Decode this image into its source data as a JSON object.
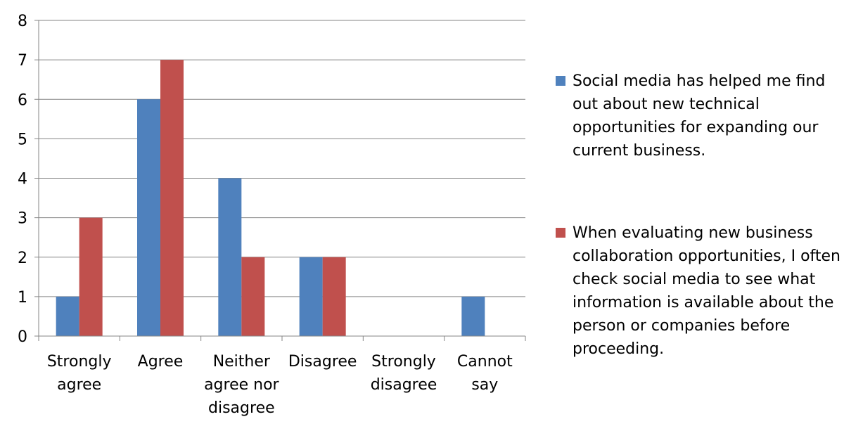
{
  "chart_data": {
    "type": "bar",
    "categories": [
      [
        "Strongly",
        "agree"
      ],
      [
        "Agree"
      ],
      [
        "Neither",
        "agree nor",
        "disagree"
      ],
      [
        "Disagree"
      ],
      [
        "Strongly",
        "disagree"
      ],
      [
        "Cannot",
        "say"
      ]
    ],
    "series": [
      {
        "name": "Social media has helped me find out about new technical opportunities for expanding our current business.",
        "color": "#4f81bd",
        "values": [
          1,
          6,
          4,
          2,
          0,
          1
        ]
      },
      {
        "name": "When evaluating new business collaboration opportunities, I often check social media to see what information is available about the person or companies before proceeding.",
        "color": "#c0504d",
        "values": [
          3,
          7,
          2,
          2,
          0,
          0
        ]
      }
    ],
    "ylim": [
      0,
      8
    ],
    "yticks": [
      "0",
      "1",
      "2",
      "3",
      "4",
      "5",
      "6",
      "7",
      "8"
    ],
    "grid": true,
    "legend": "right"
  }
}
